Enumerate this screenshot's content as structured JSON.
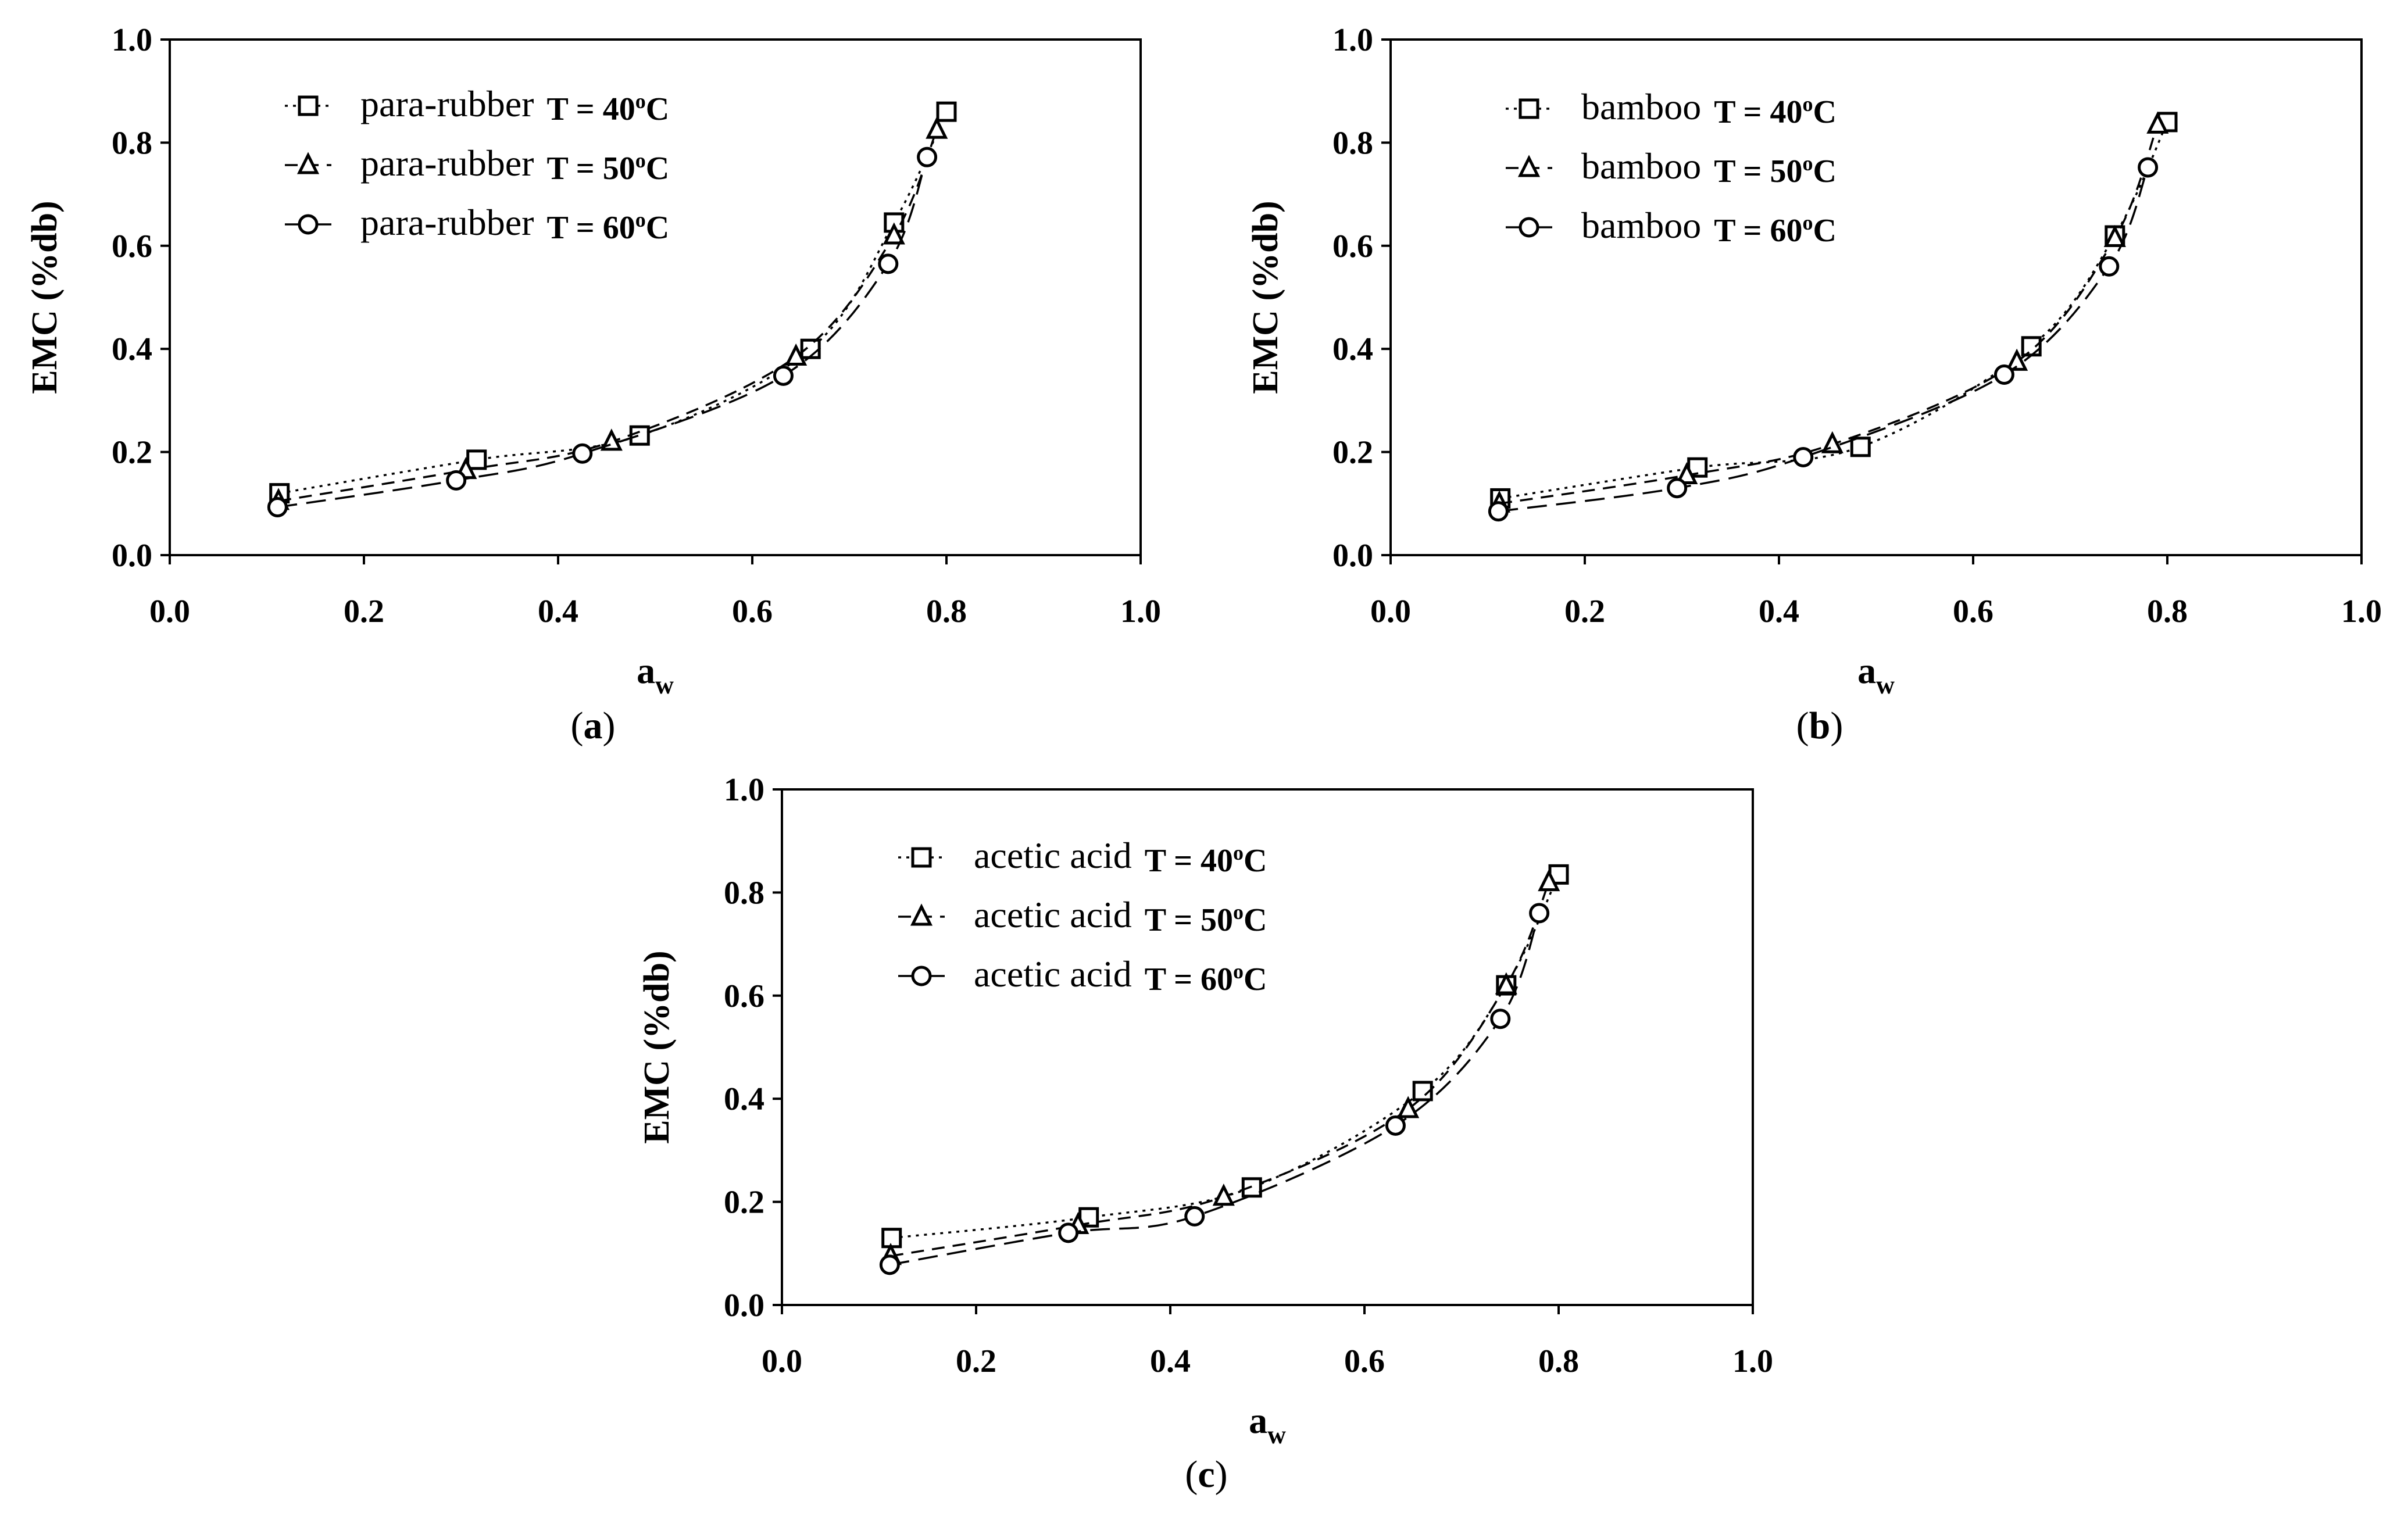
{
  "chart_data": [
    {
      "type": "scatter",
      "panel_label": "a",
      "xlabel": "a",
      "xlabel_sub": "w",
      "ylabel": "EMC (%db)",
      "xlim": [
        0,
        1.0
      ],
      "ylim": [
        0,
        1.0
      ],
      "x_ticks": [
        "0.0",
        "0.2",
        "0.4",
        "0.6",
        "0.8",
        "1.0"
      ],
      "y_ticks": [
        "0.0",
        "0.2",
        "0.4",
        "0.6",
        "0.8",
        "1.0"
      ],
      "legend_position": "top-left",
      "series": [
        {
          "name": "para-rubber",
          "temperature": "T = 40",
          "degree": "o",
          "unit": "C",
          "marker": "square",
          "dash": "dotted",
          "points": [
            [
              0.113,
              0.12
            ],
            [
              0.316,
              0.185
            ],
            [
              0.484,
              0.232
            ],
            [
              0.66,
              0.4
            ],
            [
              0.746,
              0.645
            ],
            [
              0.8,
              0.86
            ]
          ]
        },
        {
          "name": "para-rubber",
          "temperature": "T = 50",
          "degree": "o",
          "unit": "C",
          "marker": "triangle",
          "dash": "dashed",
          "points": [
            [
              0.112,
              0.105
            ],
            [
              0.305,
              0.165
            ],
            [
              0.455,
              0.22
            ],
            [
              0.645,
              0.385
            ],
            [
              0.746,
              0.62
            ],
            [
              0.79,
              0.825
            ]
          ]
        },
        {
          "name": "para-rubber",
          "temperature": "T = 60",
          "degree": "o",
          "unit": "C",
          "marker": "circle",
          "dash": "longdash",
          "points": [
            [
              0.111,
              0.093
            ],
            [
              0.295,
              0.145
            ],
            [
              0.425,
              0.197
            ],
            [
              0.632,
              0.348
            ],
            [
              0.74,
              0.565
            ],
            [
              0.78,
              0.772
            ]
          ]
        }
      ]
    },
    {
      "type": "scatter",
      "panel_label": "b",
      "xlabel": "a",
      "xlabel_sub": "w",
      "ylabel": "EMC (%db)",
      "xlim": [
        0,
        1.0
      ],
      "ylim": [
        0,
        1.0
      ],
      "x_ticks": [
        "0.0",
        "0.2",
        "0.4",
        "0.6",
        "0.8",
        "1.0"
      ],
      "y_ticks": [
        "0.0",
        "0.2",
        "0.4",
        "0.6",
        "0.8",
        "1.0"
      ],
      "legend_position": "top-left",
      "series": [
        {
          "name": "bamboo",
          "temperature": "T = 40",
          "degree": "o",
          "unit": "C",
          "marker": "square",
          "dash": "dotted",
          "points": [
            [
              0.113,
              0.11
            ],
            [
              0.316,
              0.17
            ],
            [
              0.484,
              0.21
            ],
            [
              0.66,
              0.405
            ],
            [
              0.746,
              0.62
            ],
            [
              0.8,
              0.84
            ]
          ]
        },
        {
          "name": "bamboo",
          "temperature": "T = 50",
          "degree": "o",
          "unit": "C",
          "marker": "triangle",
          "dash": "dashed",
          "points": [
            [
              0.112,
              0.1
            ],
            [
              0.305,
              0.155
            ],
            [
              0.455,
              0.215
            ],
            [
              0.645,
              0.375
            ],
            [
              0.746,
              0.615
            ],
            [
              0.79,
              0.835
            ]
          ]
        },
        {
          "name": "bamboo",
          "temperature": "T = 60",
          "degree": "o",
          "unit": "C",
          "marker": "circle",
          "dash": "longdash",
          "points": [
            [
              0.111,
              0.085
            ],
            [
              0.295,
              0.13
            ],
            [
              0.425,
              0.19
            ],
            [
              0.632,
              0.35
            ],
            [
              0.74,
              0.56
            ],
            [
              0.78,
              0.752
            ]
          ]
        }
      ]
    },
    {
      "type": "scatter",
      "panel_label": "c",
      "xlabel": "a",
      "xlabel_sub": "w",
      "ylabel": "EMC (%db)",
      "xlim": [
        0,
        1.0
      ],
      "ylim": [
        0,
        1.0
      ],
      "x_ticks": [
        "0.0",
        "0.2",
        "0.4",
        "0.6",
        "0.8",
        "1.0"
      ],
      "y_ticks": [
        "0.0",
        "0.2",
        "0.4",
        "0.6",
        "0.8",
        "1.0"
      ],
      "legend_position": "top-left",
      "series": [
        {
          "name": "acetic acid",
          "temperature": "T = 40",
          "degree": "o",
          "unit": "C",
          "marker": "square",
          "dash": "dotted",
          "points": [
            [
              0.113,
              0.13
            ],
            [
              0.316,
              0.17
            ],
            [
              0.484,
              0.228
            ],
            [
              0.66,
              0.415
            ],
            [
              0.746,
              0.62
            ],
            [
              0.8,
              0.835
            ]
          ]
        },
        {
          "name": "acetic acid",
          "temperature": "T = 50",
          "degree": "o",
          "unit": "C",
          "marker": "triangle",
          "dash": "dashed",
          "points": [
            [
              0.112,
              0.095
            ],
            [
              0.305,
              0.155
            ],
            [
              0.455,
              0.21
            ],
            [
              0.645,
              0.38
            ],
            [
              0.746,
              0.62
            ],
            [
              0.79,
              0.82
            ]
          ]
        },
        {
          "name": "acetic acid",
          "temperature": "T = 60",
          "degree": "o",
          "unit": "C",
          "marker": "circle",
          "dash": "longdash",
          "points": [
            [
              0.111,
              0.078
            ],
            [
              0.295,
              0.14
            ],
            [
              0.425,
              0.172
            ],
            [
              0.632,
              0.348
            ],
            [
              0.74,
              0.555
            ],
            [
              0.78,
              0.76
            ]
          ]
        }
      ]
    }
  ]
}
